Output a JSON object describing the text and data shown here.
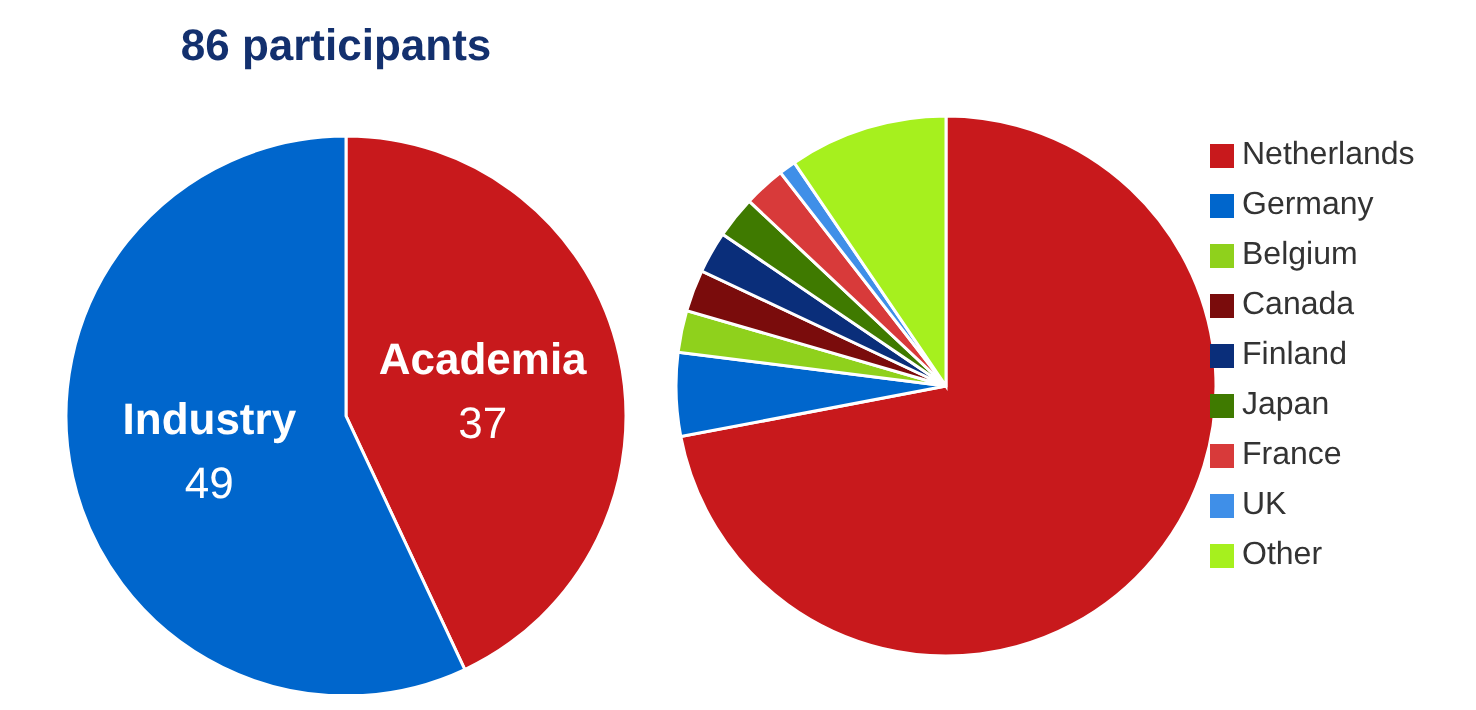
{
  "chart_data": [
    {
      "type": "pie",
      "title": "86 participants",
      "categories": [
        "Academia",
        "Industry"
      ],
      "values": [
        37,
        49
      ],
      "colors": [
        "#c8191c",
        "#0066cc"
      ],
      "data_labels": true,
      "legend": false
    },
    {
      "type": "pie",
      "categories": [
        "Netherlands",
        "Germany",
        "Belgium",
        "Canada",
        "Finland",
        "Japan",
        "France",
        "UK",
        "Other"
      ],
      "values": [
        72,
        5,
        2.5,
        2.5,
        2.5,
        2.5,
        2.5,
        1,
        9.5
      ],
      "colors": [
        "#c8191c",
        "#0066cc",
        "#8fd11c",
        "#7a0c0c",
        "#0a2e7a",
        "#3f7a00",
        "#d83a3a",
        "#3f8fe8",
        "#a6f01e"
      ],
      "legend": "right"
    }
  ]
}
